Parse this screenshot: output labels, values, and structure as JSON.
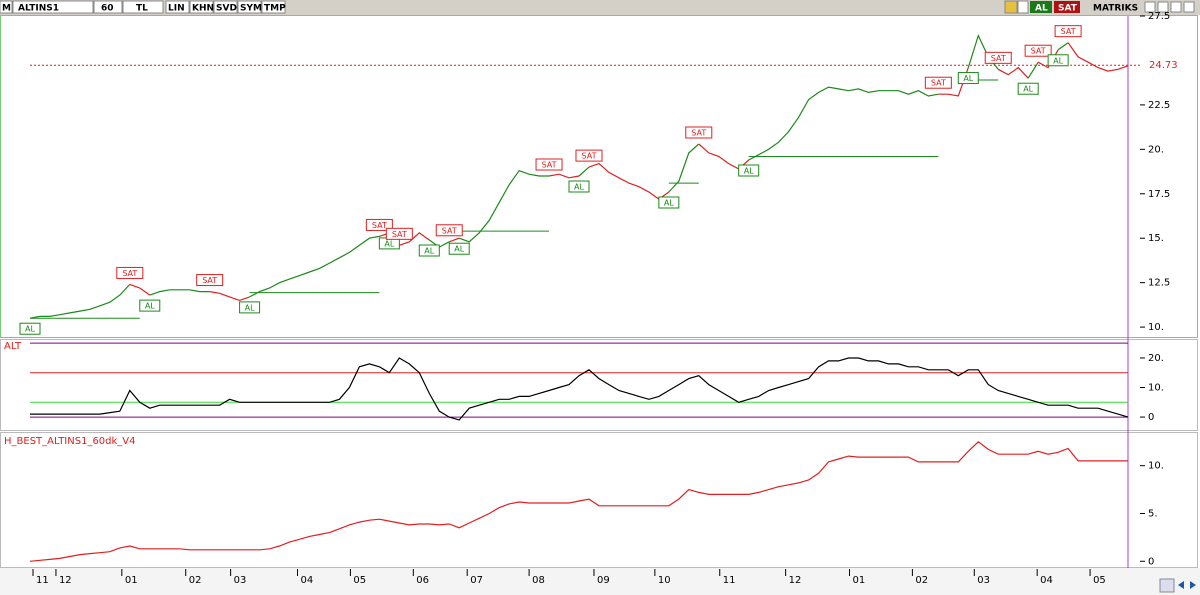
{
  "toolbar": {
    "logo": "M",
    "symbol": "ALTINS1",
    "period": "60",
    "currency": "TL",
    "buttons": [
      "LIN",
      "KHN",
      "SVD",
      "SYM",
      "TMP"
    ],
    "buy": "AL",
    "sell": "SAT",
    "brand": "MATRIKS"
  },
  "chart_data": [
    {
      "type": "line",
      "ylim": [
        9.5,
        27.5
      ],
      "yticks": [
        {
          "value": 10,
          "label": "10."
        },
        12.5,
        {
          "value": 15,
          "label": "15."
        },
        17.5,
        {
          "value": 20,
          "label": "20."
        },
        22.5,
        27.5
      ],
      "values": [
        10.5,
        10.6,
        10.6,
        10.7,
        10.8,
        10.9,
        11.0,
        11.2,
        11.4,
        11.8,
        12.4,
        12.2,
        11.8,
        12.0,
        12.1,
        12.1,
        12.1,
        12.0,
        12.0,
        11.9,
        11.7,
        11.5,
        11.7,
        12.0,
        12.2,
        12.5,
        12.7,
        12.9,
        13.1,
        13.3,
        13.6,
        13.9,
        14.2,
        14.6,
        15.0,
        15.1,
        15.3,
        14.6,
        14.8,
        15.3,
        14.9,
        14.5,
        14.8,
        15.0,
        14.8,
        15.3,
        16.0,
        17.0,
        18.0,
        18.8,
        18.6,
        18.5,
        18.5,
        18.6,
        18.4,
        18.5,
        19.0,
        19.2,
        18.7,
        18.4,
        18.1,
        17.9,
        17.6,
        17.2,
        17.6,
        18.2,
        19.8,
        20.3,
        19.8,
        19.6,
        19.2,
        18.9,
        19.4,
        19.7,
        20.0,
        20.4,
        21.0,
        21.8,
        22.8,
        23.2,
        23.5,
        23.4,
        23.3,
        23.4,
        23.2,
        23.3,
        23.3,
        23.3,
        23.1,
        23.3,
        23.0,
        23.1,
        23.1,
        23.0,
        24.6,
        26.4,
        25.2,
        24.5,
        24.2,
        24.6,
        24.0,
        24.9,
        24.6,
        25.6,
        26.0,
        25.2,
        24.9,
        24.6,
        24.4,
        24.5,
        24.7
      ],
      "annotations": [
        {
          "text": "AL",
          "x": 0,
          "color": "#1a8a1a"
        },
        {
          "text": "SAT",
          "x": 10,
          "color": "#e02020"
        },
        {
          "text": "AL",
          "x": 12,
          "color": "#1a8a1a"
        },
        {
          "text": "SAT",
          "x": 18,
          "color": "#e02020"
        },
        {
          "text": "AL",
          "x": 22,
          "color": "#1a8a1a"
        },
        {
          "text": "SAT",
          "x": 35,
          "color": "#e02020"
        },
        {
          "text": "AL",
          "x": 36,
          "color": "#1a8a1a"
        },
        {
          "text": "SAT",
          "x": 37,
          "color": "#e02020"
        },
        {
          "text": "AL",
          "x": 40,
          "color": "#1a8a1a"
        },
        {
          "text": "SAT",
          "x": 42,
          "color": "#e02020"
        },
        {
          "text": "AL",
          "x": 43,
          "color": "#1a8a1a"
        },
        {
          "text": "SAT",
          "x": 52,
          "color": "#e02020"
        },
        {
          "text": "AL",
          "x": 55,
          "color": "#1a8a1a"
        },
        {
          "text": "SAT",
          "x": 56,
          "color": "#e02020"
        },
        {
          "text": "AL",
          "x": 64,
          "color": "#1a8a1a"
        },
        {
          "text": "SAT",
          "x": 67,
          "color": "#e02020"
        },
        {
          "text": "AL",
          "x": 72,
          "color": "#1a8a1a"
        },
        {
          "text": "SAT",
          "x": 91,
          "color": "#e02020"
        },
        {
          "text": "AL",
          "x": 94,
          "color": "#1a8a1a"
        },
        {
          "text": "SAT",
          "x": 97,
          "color": "#e02020"
        },
        {
          "text": "AL",
          "x": 100,
          "color": "#1a8a1a"
        },
        {
          "text": "SAT",
          "x": 101,
          "color": "#e02020"
        },
        {
          "text": "AL",
          "x": 103,
          "color": "#1a8a1a"
        },
        {
          "text": "SAT",
          "x": 104,
          "color": "#e02020"
        }
      ],
      "levels": [
        {
          "x": [
            0,
            11
          ],
          "value": 10.5
        },
        {
          "x": [
            22,
            35
          ],
          "value": 11.94
        },
        {
          "x": [
            43,
            52
          ],
          "value": 15.4
        },
        {
          "x": [
            64,
            67
          ],
          "value": 18.1
        },
        {
          "x": [
            72,
            91
          ],
          "value": 19.6
        },
        {
          "x": [
            94,
            97
          ],
          "value": 23.9
        }
      ],
      "level_color": "#1a8a1a",
      "last_price": 24.73,
      "last_price_color": "#e02020"
    },
    {
      "type": "line",
      "title": "ALT",
      "ylim": [
        -3.7,
        25.4
      ],
      "yticks": [
        {
          "value": 0,
          "label": "0"
        },
        {
          "value": 10,
          "label": "10."
        },
        {
          "value": 20,
          "label": "20."
        }
      ],
      "color": "#000000",
      "values": [
        1,
        1,
        1,
        1,
        1,
        1,
        1,
        1,
        1.5,
        2,
        9,
        5,
        3,
        4,
        4,
        4,
        4,
        4,
        4,
        4,
        6,
        5,
        5,
        5,
        5,
        5,
        5,
        5,
        5,
        5,
        5,
        6,
        10,
        17,
        18,
        17,
        15,
        20,
        18,
        15,
        8,
        2,
        0,
        -1,
        3,
        4,
        5,
        6,
        6,
        7,
        7,
        8,
        9,
        10,
        11,
        14,
        16,
        13,
        11,
        9,
        8,
        7,
        6,
        7,
        9,
        11,
        13,
        14,
        11,
        9,
        7,
        5,
        6,
        7,
        9,
        10,
        11,
        12,
        13,
        17,
        19,
        19,
        20,
        20,
        19,
        19,
        18,
        18,
        17,
        17,
        16,
        16,
        16,
        14,
        16,
        16,
        11,
        9,
        8,
        7,
        6,
        5,
        4,
        4,
        4,
        3,
        3,
        3,
        2,
        1,
        0
      ],
      "levels": [
        {
          "value": 25,
          "color": "#800080"
        },
        {
          "value": 15,
          "color": "#e02020"
        },
        {
          "value": 5,
          "color": "#33dd33"
        },
        {
          "value": 0,
          "color": "#800080"
        }
      ]
    },
    {
      "type": "line",
      "title": "H_BEST_ALTINS1_60dk_V4",
      "ylim": [
        -0.6,
        13
      ],
      "yticks": [
        0,
        {
          "value": 5,
          "label": "5."
        },
        {
          "value": 10,
          "label": "10."
        }
      ],
      "color": "#e02020",
      "values": [
        0,
        0.1,
        0.2,
        0.3,
        0.5,
        0.7,
        0.8,
        0.9,
        1.0,
        1.4,
        1.6,
        1.3,
        1.3,
        1.3,
        1.3,
        1.3,
        1.2,
        1.2,
        1.2,
        1.2,
        1.2,
        1.2,
        1.2,
        1.2,
        1.3,
        1.6,
        2.0,
        2.3,
        2.6,
        2.8,
        3.0,
        3.4,
        3.8,
        4.1,
        4.3,
        4.4,
        4.2,
        4.0,
        3.8,
        3.9,
        3.9,
        3.8,
        3.9,
        3.5,
        4.0,
        4.5,
        5.0,
        5.6,
        6.0,
        6.2,
        6.1,
        6.1,
        6.1,
        6.1,
        6.1,
        6.3,
        6.5,
        5.8,
        5.8,
        5.8,
        5.8,
        5.8,
        5.8,
        5.8,
        5.8,
        6.5,
        7.5,
        7.2,
        7.0,
        7.0,
        7.0,
        7.0,
        7.0,
        7.2,
        7.5,
        7.8,
        8.0,
        8.2,
        8.5,
        9.2,
        10.4,
        10.7,
        11.0,
        10.9,
        10.9,
        10.9,
        10.9,
        10.9,
        10.9,
        10.4,
        10.4,
        10.4,
        10.4,
        10.4,
        11.5,
        12.5,
        11.7,
        11.2,
        11.2,
        11.2,
        11.2,
        11.5,
        11.2,
        11.4,
        11.8,
        10.5,
        10.5,
        10.5,
        10.5,
        10.5,
        10.5
      ],
      "xlim": [
        0,
        110
      ],
      "xticks": [
        {
          "value": 0.3,
          "label": "11"
        },
        {
          "value": 2.6,
          "label": "12"
        },
        {
          "value": 9.2,
          "label": "01"
        },
        {
          "value": 15.6,
          "label": "02"
        },
        {
          "value": 20.1,
          "label": "03"
        },
        {
          "value": 26.8,
          "label": "04"
        },
        {
          "value": 32.1,
          "label": "05"
        },
        {
          "value": 38.4,
          "label": "06"
        },
        {
          "value": 43.8,
          "label": "07"
        },
        {
          "value": 50.0,
          "label": "08"
        },
        {
          "value": 56.5,
          "label": "09"
        },
        {
          "value": 62.6,
          "label": "10"
        },
        {
          "value": 69.1,
          "label": "11"
        },
        {
          "value": 75.7,
          "label": "12"
        },
        {
          "value": 82.1,
          "label": "01"
        },
        {
          "value": 88.4,
          "label": "02"
        },
        {
          "value": 94.6,
          "label": "03"
        },
        {
          "value": 100.9,
          "label": "04"
        },
        {
          "value": 106.2,
          "label": "05"
        }
      ]
    }
  ]
}
